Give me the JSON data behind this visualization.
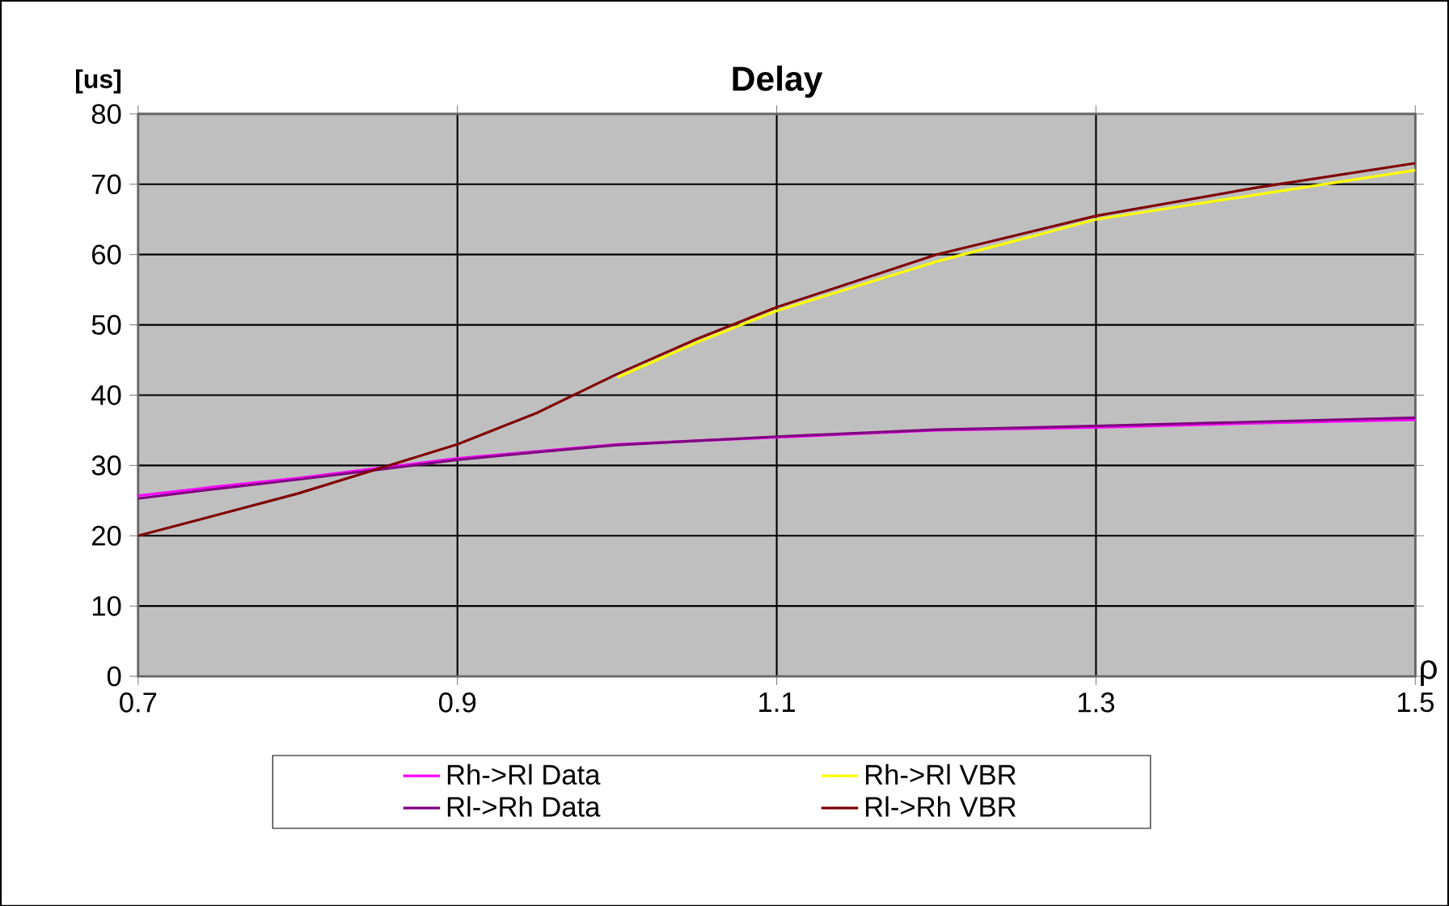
{
  "chart_data": {
    "type": "line",
    "title": "Delay",
    "xlabel": "ρ",
    "ylabel": "[us]",
    "x": [
      0.7,
      0.75,
      0.8,
      0.85,
      0.9,
      0.95,
      1.0,
      1.05,
      1.1,
      1.2,
      1.3,
      1.4,
      1.5
    ],
    "series": [
      {
        "name": "Rh->Rl Data",
        "color": "#ff00ff",
        "values": [
          25.7,
          27,
          28.2,
          29.6,
          31,
          32,
          33,
          33.5,
          34,
          35,
          35.4,
          36,
          36.5
        ]
      },
      {
        "name": "Rh->Rl VBR",
        "color": "#ffff00",
        "values": [
          null,
          null,
          null,
          null,
          null,
          null,
          42.5,
          47.5,
          52,
          59,
          65,
          68.5,
          72
        ]
      },
      {
        "name": "Rl->Rh Data",
        "color": "#800080",
        "values": [
          25.3,
          26.7,
          28,
          29.4,
          30.8,
          31.9,
          32.9,
          33.5,
          34.1,
          35.1,
          35.6,
          36.2,
          36.8
        ]
      },
      {
        "name": "Rl->Rh VBR",
        "color": "#800000",
        "values": [
          20,
          23,
          26,
          29.5,
          33,
          37.5,
          43,
          48,
          52.5,
          60,
          65.5,
          69.5,
          73
        ]
      }
    ],
    "xlim": [
      0.7,
      1.5
    ],
    "xticks": [
      0.7,
      0.9,
      1.1,
      1.3,
      1.5
    ],
    "ylim": [
      0,
      80
    ],
    "yticks": [
      0,
      10,
      20,
      30,
      40,
      50,
      60,
      70,
      80
    ],
    "grid": true,
    "legend": "bottom"
  }
}
